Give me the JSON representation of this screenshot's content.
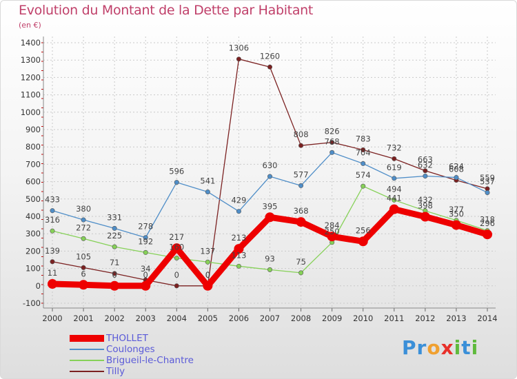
{
  "title": "Evolution du Montant de la Dette par Habitant",
  "subtitle": "(en €)",
  "logo": {
    "letters": [
      "P",
      "r",
      "o",
      "x",
      "i",
      "t",
      "i"
    ],
    "colors": [
      "#3a8fd8",
      "#3a8fd8",
      "#f0a030",
      "#e8302a",
      "#5fba3c",
      "#3a8fd8",
      "#5fba3c"
    ]
  },
  "chart_data": {
    "type": "line",
    "title": "Evolution du Montant de la Dette par Habitant",
    "ylabel": "(en €)",
    "xlabel": "",
    "ylim": [
      -100,
      1400
    ],
    "yticks": [
      -100,
      0,
      100,
      200,
      300,
      400,
      500,
      600,
      700,
      800,
      900,
      1000,
      1100,
      1200,
      1300,
      1400
    ],
    "grid": true,
    "legend_position": "bottom-left",
    "x": [
      "2000",
      "2001",
      "2002",
      "2003",
      "2004",
      "2005",
      "2006",
      "2007",
      "2008",
      "2009",
      "2010",
      "2011",
      "2012",
      "2013",
      "2014"
    ],
    "series": [
      {
        "name": "Tilly",
        "color": "#7b2121",
        "values": [
          139,
          105,
          71,
          34,
          0,
          0,
          1306,
          1260,
          808,
          826,
          783,
          732,
          663,
          608,
          559
        ]
      },
      {
        "name": "Coulonges",
        "color": "#4f8ec8",
        "values": [
          433,
          380,
          331,
          278,
          596,
          541,
          429,
          630,
          577,
          768,
          704,
          619,
          632,
          624,
          537
        ]
      },
      {
        "name": "Brigueil-le-Chantre",
        "color": "#86d158",
        "values": [
          316,
          272,
          225,
          192,
          160,
          137,
          113,
          93,
          75,
          250,
          574,
          494,
          432,
          377,
          318
        ]
      },
      {
        "name": "THOLLET",
        "color": "#ee0000",
        "values": [
          11,
          6,
          0,
          0,
          217,
          0,
          213,
          395,
          368,
          284,
          256,
          441,
          398,
          350,
          296
        ]
      }
    ],
    "labels": [
      {
        "series": "Tilly",
        "text": [
          "139",
          "105",
          "71",
          "34",
          "0",
          "0",
          "1306",
          "1260",
          "808",
          "826",
          "783",
          "732",
          "663",
          "608",
          "559"
        ]
      },
      {
        "series": "Coulonges",
        "text": [
          "433",
          "380",
          "331",
          "278",
          "596",
          "541",
          "429",
          "630",
          "577",
          "768",
          "704",
          "619",
          "632",
          "624",
          "537"
        ]
      },
      {
        "series": "Brigueil-le-Chantre",
        "text": [
          "316",
          "272",
          "225",
          "192",
          "160",
          "137",
          "113",
          "93",
          "75",
          "250",
          "574",
          "494",
          "432",
          "377",
          "318"
        ]
      },
      {
        "series": "THOLLET",
        "text": [
          "11",
          "6",
          "0",
          "0",
          "217",
          "0",
          "213",
          "395",
          "368",
          "284",
          "256",
          "441",
          "398",
          "350",
          "296"
        ]
      }
    ]
  },
  "legend": [
    {
      "name": "THOLLET",
      "color": "#ee0000"
    },
    {
      "name": "Coulonges",
      "color": "#4f8ec8"
    },
    {
      "name": "Brigueil-le-Chantre",
      "color": "#86d158"
    },
    {
      "name": "Tilly",
      "color": "#7b2121"
    }
  ]
}
